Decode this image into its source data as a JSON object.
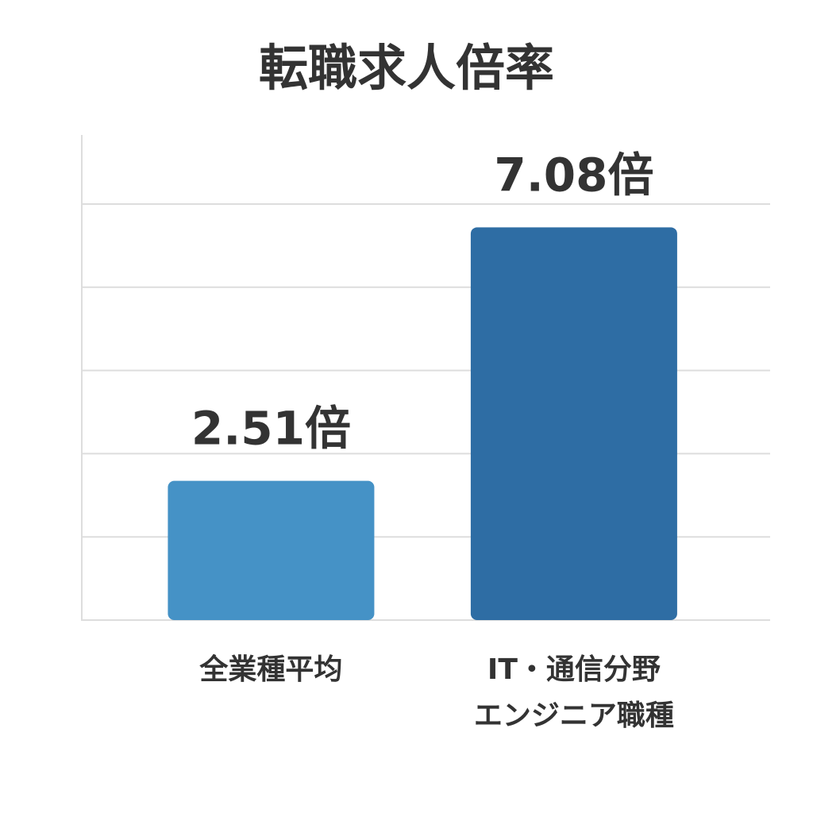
{
  "chart_data": {
    "type": "bar",
    "title": "転職求人倍率",
    "categories": [
      [
        "全業種平均"
      ],
      [
        "IT・通信分野",
        "エンジニア職種"
      ]
    ],
    "values": [
      2.51,
      7.08
    ],
    "value_labels": [
      "2.51倍",
      "7.08倍"
    ],
    "colors": [
      "#4592c6",
      "#2e6da4"
    ],
    "ylim": [
      0,
      7.5
    ],
    "yticks": [
      0,
      1.5,
      3,
      4.5,
      6,
      7.5
    ],
    "grid": true
  }
}
